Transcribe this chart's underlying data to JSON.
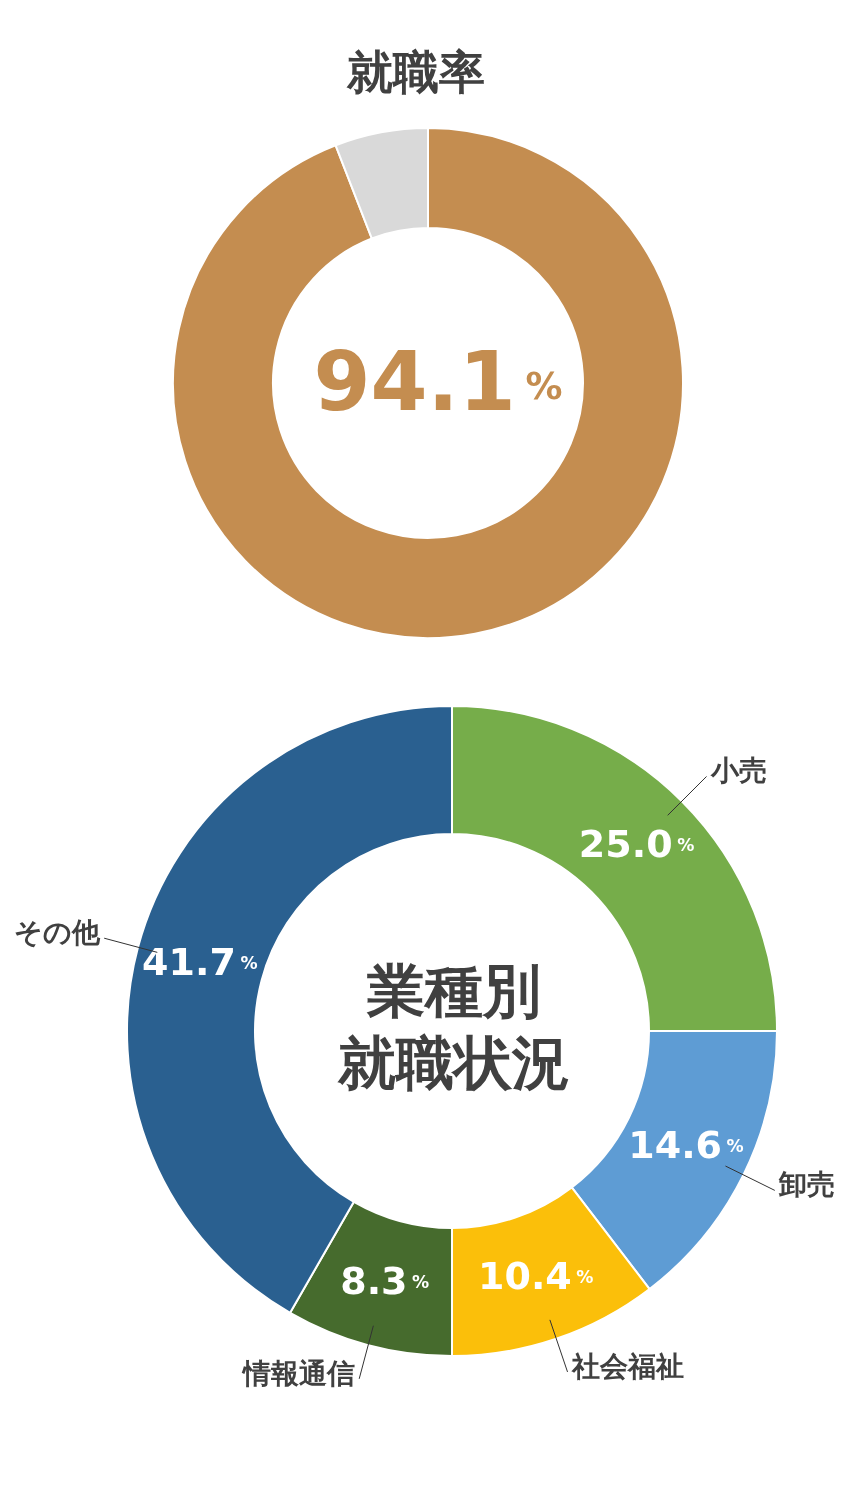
{
  "chart_data": [
    {
      "type": "donut",
      "title": "就職率",
      "categories": [
        null,
        null
      ],
      "values": [
        94.1,
        5.9
      ],
      "colors": [
        "#c48d50",
        "#d9d9d9"
      ],
      "value_labels": [
        "94.1%",
        null
      ]
    },
    {
      "type": "donut",
      "title": "業種別就職状況",
      "categories": [
        "小売",
        "卸売",
        "社会福祉",
        "情報通信",
        "その他"
      ],
      "values": [
        25.0,
        14.6,
        10.4,
        8.3,
        41.7
      ],
      "colors": [
        "#76ad4a",
        "#5e9cd4",
        "#fbbf0a",
        "#466b2d",
        "#2a6090"
      ],
      "value_labels": [
        "25.0%",
        "14.6%",
        "10.4%",
        "8.3%",
        "41.7%"
      ]
    }
  ]
}
